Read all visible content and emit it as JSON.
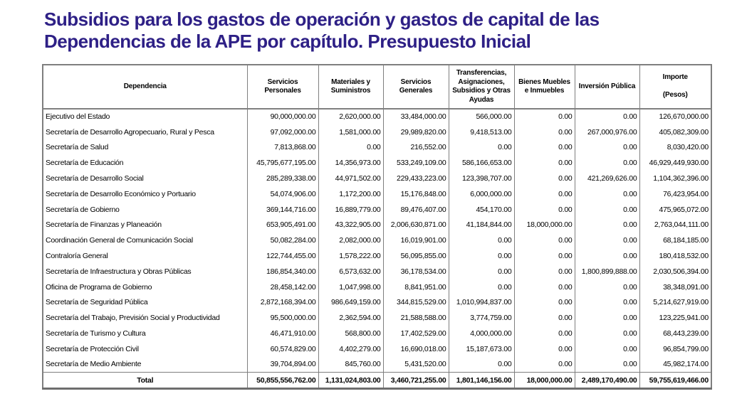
{
  "page": {
    "title_line1": "Subsidios para los gastos de operación y gastos de capital de las",
    "title_line2": "Dependencias de la APE por capítulo. Presupuesto Inicial"
  },
  "colors": {
    "title": "#2e2086",
    "border": "#7f7f7f",
    "text": "#000000",
    "background": "#ffffff"
  },
  "table": {
    "columns": [
      "Dependencia",
      "Servicios\nPersonales",
      "Materiales y\nSuministros",
      "Servicios\nGenerales",
      "Transferencias,\nAsignaciones,\nSubsidios y Otras\nAyudas",
      "Bienes Muebles\ne Inmuebles",
      "Inversión Pública",
      "Importe\n\n(Pesos)"
    ],
    "rows": [
      {
        "dependencia": "Ejecutivo del Estado",
        "values": [
          "90,000,000.00",
          "2,620,000.00",
          "33,484,000.00",
          "566,000.00",
          "0.00",
          "0.00",
          "126,670,000.00"
        ]
      },
      {
        "dependencia": "Secretaría de Desarrollo Agropecuario, Rural y Pesca",
        "values": [
          "97,092,000.00",
          "1,581,000.00",
          "29,989,820.00",
          "9,418,513.00",
          "0.00",
          "267,000,976.00",
          "405,082,309.00"
        ]
      },
      {
        "dependencia": "Secretaría de Salud",
        "values": [
          "7,813,868.00",
          "0.00",
          "216,552.00",
          "0.00",
          "0.00",
          "0.00",
          "8,030,420.00"
        ]
      },
      {
        "dependencia": "Secretaría de Educación",
        "values": [
          "45,795,677,195.00",
          "14,356,973.00",
          "533,249,109.00",
          "586,166,653.00",
          "0.00",
          "0.00",
          "46,929,449,930.00"
        ]
      },
      {
        "dependencia": "Secretaría de Desarrollo Social",
        "values": [
          "285,289,338.00",
          "44,971,502.00",
          "229,433,223.00",
          "123,398,707.00",
          "0.00",
          "421,269,626.00",
          "1,104,362,396.00"
        ]
      },
      {
        "dependencia": "Secretaría de Desarrollo Económico y Portuario",
        "values": [
          "54,074,906.00",
          "1,172,200.00",
          "15,176,848.00",
          "6,000,000.00",
          "0.00",
          "0.00",
          "76,423,954.00"
        ]
      },
      {
        "dependencia": "Secretaría de Gobierno",
        "values": [
          "369,144,716.00",
          "16,889,779.00",
          "89,476,407.00",
          "454,170.00",
          "0.00",
          "0.00",
          "475,965,072.00"
        ]
      },
      {
        "dependencia": "Secretaría de Finanzas y Planeación",
        "values": [
          "653,905,491.00",
          "43,322,905.00",
          "2,006,630,871.00",
          "41,184,844.00",
          "18,000,000.00",
          "0.00",
          "2,763,044,111.00"
        ]
      },
      {
        "dependencia": "Coordinación General de Comunicación Social",
        "values": [
          "50,082,284.00",
          "2,082,000.00",
          "16,019,901.00",
          "0.00",
          "0.00",
          "0.00",
          "68,184,185.00"
        ]
      },
      {
        "dependencia": "Contraloría General",
        "values": [
          "122,744,455.00",
          "1,578,222.00",
          "56,095,855.00",
          "0.00",
          "0.00",
          "0.00",
          "180,418,532.00"
        ]
      },
      {
        "dependencia": "Secretaría de Infraestructura y Obras Públicas",
        "values": [
          "186,854,340.00",
          "6,573,632.00",
          "36,178,534.00",
          "0.00",
          "0.00",
          "1,800,899,888.00",
          "2,030,506,394.00"
        ]
      },
      {
        "dependencia": "Oficina de Programa de Gobierno",
        "values": [
          "28,458,142.00",
          "1,047,998.00",
          "8,841,951.00",
          "0.00",
          "0.00",
          "0.00",
          "38,348,091.00"
        ]
      },
      {
        "dependencia": "Secretaría de Seguridad Pública",
        "values": [
          "2,872,168,394.00",
          "986,649,159.00",
          "344,815,529.00",
          "1,010,994,837.00",
          "0.00",
          "0.00",
          "5,214,627,919.00"
        ]
      },
      {
        "dependencia": "Secretaría del Trabajo, Previsión Social y Productividad",
        "values": [
          "95,500,000.00",
          "2,362,594.00",
          "21,588,588.00",
          "3,774,759.00",
          "0.00",
          "0.00",
          "123,225,941.00"
        ]
      },
      {
        "dependencia": "Secretaría de Turismo y Cultura",
        "values": [
          "46,471,910.00",
          "568,800.00",
          "17,402,529.00",
          "4,000,000.00",
          "0.00",
          "0.00",
          "68,443,239.00"
        ]
      },
      {
        "dependencia": "Secretaría de Protección Civil",
        "values": [
          "60,574,829.00",
          "4,402,279.00",
          "16,690,018.00",
          "15,187,673.00",
          "0.00",
          "0.00",
          "96,854,799.00"
        ]
      },
      {
        "dependencia": "Secretaría de Medio Ambiente",
        "values": [
          "39,704,894.00",
          "845,760.00",
          "5,431,520.00",
          "0.00",
          "0.00",
          "0.00",
          "45,982,174.00"
        ]
      }
    ],
    "total": {
      "label": "Total",
      "values": [
        "50,855,556,762.00",
        "1,131,024,803.00",
        "3,460,721,255.00",
        "1,801,146,156.00",
        "18,000,000.00",
        "2,489,170,490.00",
        "59,755,619,466.00"
      ]
    }
  }
}
